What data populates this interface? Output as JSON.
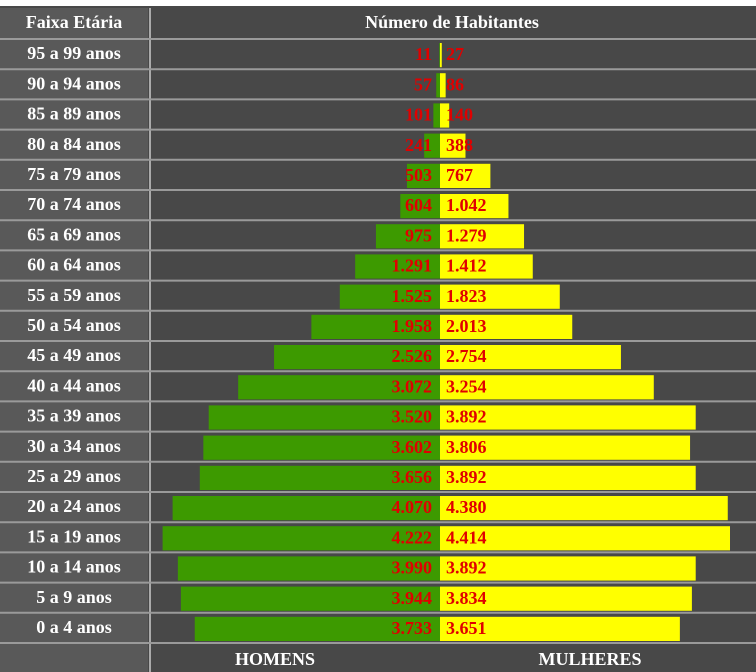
{
  "chart_data": {
    "type": "pyramid",
    "title": "Número de Habitantes",
    "category_header": "Faixa Etária",
    "categories": [
      "95 a 99 anos",
      "90 a 94 anos",
      "85 a 89 anos",
      "80 a 84 anos",
      "75 a 79 anos",
      "70 a 74 anos",
      "65 a 69 anos",
      "60 a 64 anos",
      "55 a 59 anos",
      "50 a 54 anos",
      "45 a 49 anos",
      "40 a 44 anos",
      "35 a 39 anos",
      "30 a 34 anos",
      "25 a 29 anos",
      "20 a 24 anos",
      "15 a 19 anos",
      "10 a 14 anos",
      "5 a 9 anos",
      "0 a 4 anos"
    ],
    "series": [
      {
        "name": "HOMENS",
        "color": "#3d9a00",
        "side": "left",
        "values": [
          11,
          57,
          101,
          241,
          503,
          604,
          975,
          1291,
          1525,
          1958,
          2526,
          3072,
          3520,
          3602,
          3656,
          4070,
          4222,
          3990,
          3944,
          3733
        ],
        "value_labels": [
          "11",
          "57",
          "101",
          "241",
          "503",
          "604",
          "975",
          "1.291",
          "1.525",
          "1.958",
          "2.526",
          "3.072",
          "3.520",
          "3.602",
          "3.656",
          "4.070",
          "4.222",
          "3.990",
          "3.944",
          "3.733"
        ]
      },
      {
        "name": "MULHERES",
        "color": "#ffff00",
        "side": "right",
        "values": [
          27,
          86,
          140,
          388,
          767,
          1042,
          1279,
          1412,
          1823,
          2013,
          2754,
          3254,
          3892,
          3806,
          3892,
          4380,
          4414,
          3892,
          3834,
          3651
        ],
        "value_labels": [
          "27",
          "86",
          "140",
          "388",
          "767",
          "1.042",
          "1.279",
          "1.412",
          "1.823",
          "2.013",
          "2.754",
          "3.254",
          "3.892",
          "3.806",
          "3.892",
          "4.380",
          "4.414",
          "3.892",
          "3.834",
          "3.651"
        ]
      }
    ],
    "label_color": "#e00000"
  }
}
